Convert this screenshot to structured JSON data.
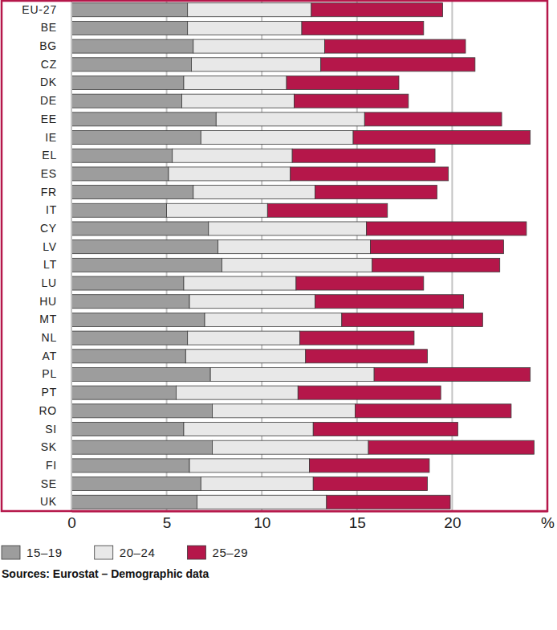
{
  "chart_data": {
    "type": "bar",
    "orientation": "horizontal",
    "stacked": true,
    "grid": true,
    "legend": "bottom-left",
    "source": "Sources: Eurostat – Demographic data",
    "categories": [
      "EU-27",
      "BE",
      "BG",
      "CZ",
      "DK",
      "DE",
      "EE",
      "IE",
      "EL",
      "ES",
      "FR",
      "IT",
      "CY",
      "LV",
      "LT",
      "LU",
      "HU",
      "MT",
      "NL",
      "AT",
      "PL",
      "PT",
      "RO",
      "SI",
      "SK",
      "FI",
      "SE",
      "UK"
    ],
    "series": [
      {
        "name": "15–19",
        "color": "#9d9d9d",
        "values": [
          6.1,
          6.1,
          6.4,
          6.3,
          5.9,
          5.8,
          7.6,
          6.8,
          5.3,
          5.1,
          6.4,
          5.0,
          7.2,
          7.7,
          7.9,
          5.9,
          6.2,
          7.0,
          6.1,
          6.0,
          7.3,
          5.5,
          7.4,
          5.9,
          7.4,
          6.2,
          6.8,
          6.6
        ]
      },
      {
        "name": "20–24",
        "color": "#e8e8e8",
        "values": [
          6.5,
          6.0,
          6.9,
          6.8,
          5.4,
          5.9,
          7.8,
          8.0,
          6.3,
          6.4,
          6.4,
          5.3,
          8.3,
          8.0,
          7.9,
          5.9,
          6.6,
          7.2,
          5.9,
          6.3,
          8.6,
          6.4,
          7.5,
          6.8,
          8.2,
          6.3,
          5.9,
          6.8
        ]
      },
      {
        "name": "25–29",
        "color": "#b5174a",
        "values": [
          6.9,
          6.4,
          7.4,
          8.1,
          5.9,
          6.0,
          7.2,
          9.3,
          7.5,
          8.3,
          6.4,
          6.3,
          8.4,
          7.0,
          6.7,
          6.7,
          7.8,
          7.4,
          6.0,
          6.4,
          8.2,
          7.5,
          8.2,
          7.6,
          8.7,
          6.3,
          6.0,
          6.5
        ]
      }
    ],
    "xlim": [
      0,
      25
    ],
    "xticks": [
      0,
      5,
      10,
      15,
      20,
      {
        "value": 25,
        "label": "%"
      }
    ]
  }
}
